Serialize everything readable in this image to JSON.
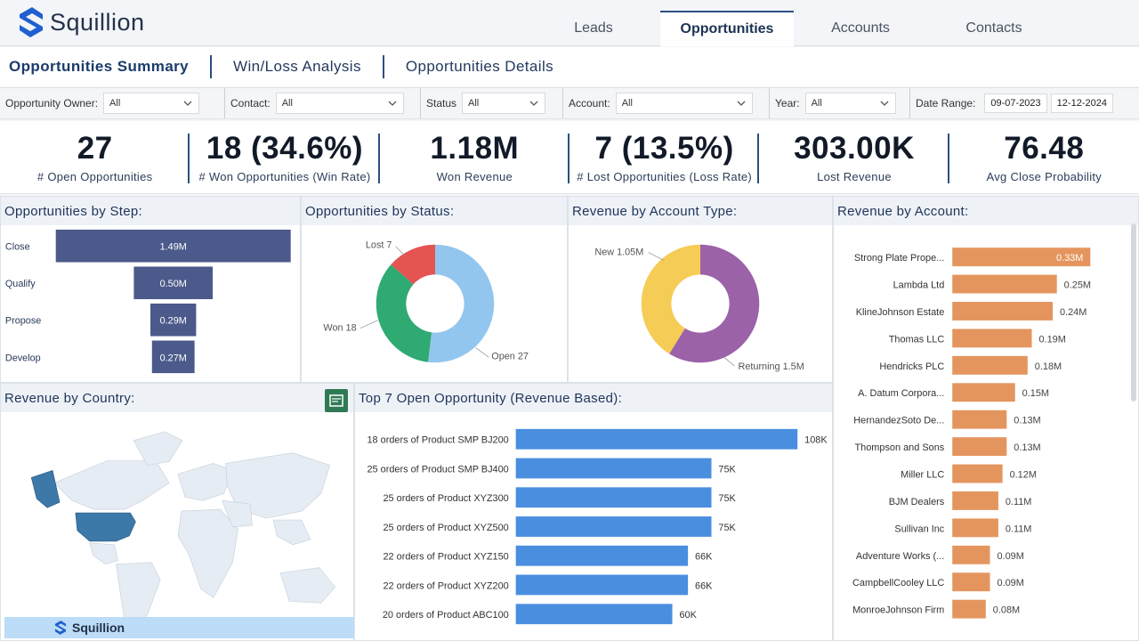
{
  "brand": {
    "name": "Squillion"
  },
  "tabs": [
    {
      "label": "Leads",
      "active": false
    },
    {
      "label": "Opportunities",
      "active": true
    },
    {
      "label": "Accounts",
      "active": false
    },
    {
      "label": "Contacts",
      "active": false
    }
  ],
  "subnav": [
    {
      "label": "Opportunities Summary",
      "active": true
    },
    {
      "label": "Win/Loss Analysis",
      "active": false
    },
    {
      "label": "Opportunities Details",
      "active": false
    }
  ],
  "filters": {
    "owner": {
      "label": "Opportunity Owner:",
      "value": "All"
    },
    "contact": {
      "label": "Contact:",
      "value": "All"
    },
    "status": {
      "label": "Status",
      "value": "All"
    },
    "account": {
      "label": "Account:",
      "value": "All"
    },
    "year": {
      "label": "Year:",
      "value": "All"
    },
    "date_range": {
      "label": "Date Range:",
      "start": "09-07-2023",
      "end": "12-12-2024"
    }
  },
  "kpis": [
    {
      "value": "27",
      "label": "# Open Opportunities"
    },
    {
      "value": "18 (34.6%)",
      "label": "# Won Opportunities (Win Rate)"
    },
    {
      "value": "1.18M",
      "label": "Won Revenue"
    },
    {
      "value": "7 (13.5%)",
      "label": "# Lost Opportunities (Loss Rate)"
    },
    {
      "value": "303.00K",
      "label": "Lost Revenue"
    },
    {
      "value": "76.48",
      "label": "Avg Close Probability"
    }
  ],
  "panels": {
    "by_step": "Opportunities by Step:",
    "by_status": "Opportunities by Status:",
    "by_account_type": "Revenue by Account Type:",
    "by_account": "Revenue by Account:",
    "by_country": "Revenue by Country:",
    "top7": "Top 7 Open Opportunity (Revenue Based):"
  },
  "chart_data": [
    {
      "type": "bar",
      "title": "Opportunities by Step:",
      "categories": [
        "Close",
        "Qualify",
        "Propose",
        "Develop"
      ],
      "values": [
        1.49,
        0.5,
        0.29,
        0.27
      ],
      "labels": [
        "1.49M",
        "0.50M",
        "0.29M",
        "0.27M"
      ],
      "color": "#4b5a8a"
    },
    {
      "type": "pie",
      "title": "Opportunities by Status:",
      "categories": [
        "Open",
        "Won",
        "Lost"
      ],
      "values": [
        27,
        18,
        7
      ],
      "labels": [
        "Open 27",
        "Won 18",
        "Lost 7"
      ],
      "colors": [
        "#93c6ee",
        "#2faa72",
        "#e45450"
      ]
    },
    {
      "type": "pie",
      "title": "Revenue by Account Type:",
      "categories": [
        "Returning",
        "New"
      ],
      "values": [
        1.5,
        1.05
      ],
      "labels": [
        "Returning 1.5M",
        "New 1.05M"
      ],
      "colors": [
        "#9b62a8",
        "#f5cc55"
      ]
    },
    {
      "type": "bar",
      "title": "Revenue by Account:",
      "categories": [
        "Strong Plate Prope...",
        "Lambda Ltd",
        "KlineJohnson Estate",
        "Thomas LLC",
        "Hendricks PLC",
        "A. Datum Corpora...",
        "HernandezSoto De...",
        "Thompson and Sons",
        "Miller LLC",
        "BJM Dealers",
        "Sullivan Inc",
        "Adventure Works (...",
        "CampbellCooley LLC",
        "MonroeJohnson Firm"
      ],
      "values": [
        0.33,
        0.25,
        0.24,
        0.19,
        0.18,
        0.15,
        0.13,
        0.13,
        0.12,
        0.11,
        0.11,
        0.09,
        0.09,
        0.08
      ],
      "labels": [
        "0.33M",
        "0.25M",
        "0.24M",
        "0.19M",
        "0.18M",
        "0.15M",
        "0.13M",
        "0.13M",
        "0.12M",
        "0.11M",
        "0.11M",
        "0.09M",
        "0.09M",
        "0.08M"
      ],
      "color": "#e4955e"
    },
    {
      "type": "bar",
      "title": "Top 7 Open Opportunity (Revenue Based):",
      "categories": [
        "18 orders of Product SMP BJ200",
        "25 orders of Product SMP BJ400",
        "25 orders of Product XYZ300",
        "25 orders of Product XYZ500",
        "22 orders of Product XYZ150",
        "22 orders of Product XYZ200",
        "20 orders of Product ABC100"
      ],
      "values": [
        108,
        75,
        75,
        75,
        66,
        66,
        60
      ],
      "labels": [
        "108K",
        "75K",
        "75K",
        "75K",
        "66K",
        "66K",
        "60K"
      ],
      "color": "#4a8ee0"
    }
  ],
  "map": {
    "highlight_color": "#3c78a8",
    "base_color": "#e6ecf3"
  }
}
